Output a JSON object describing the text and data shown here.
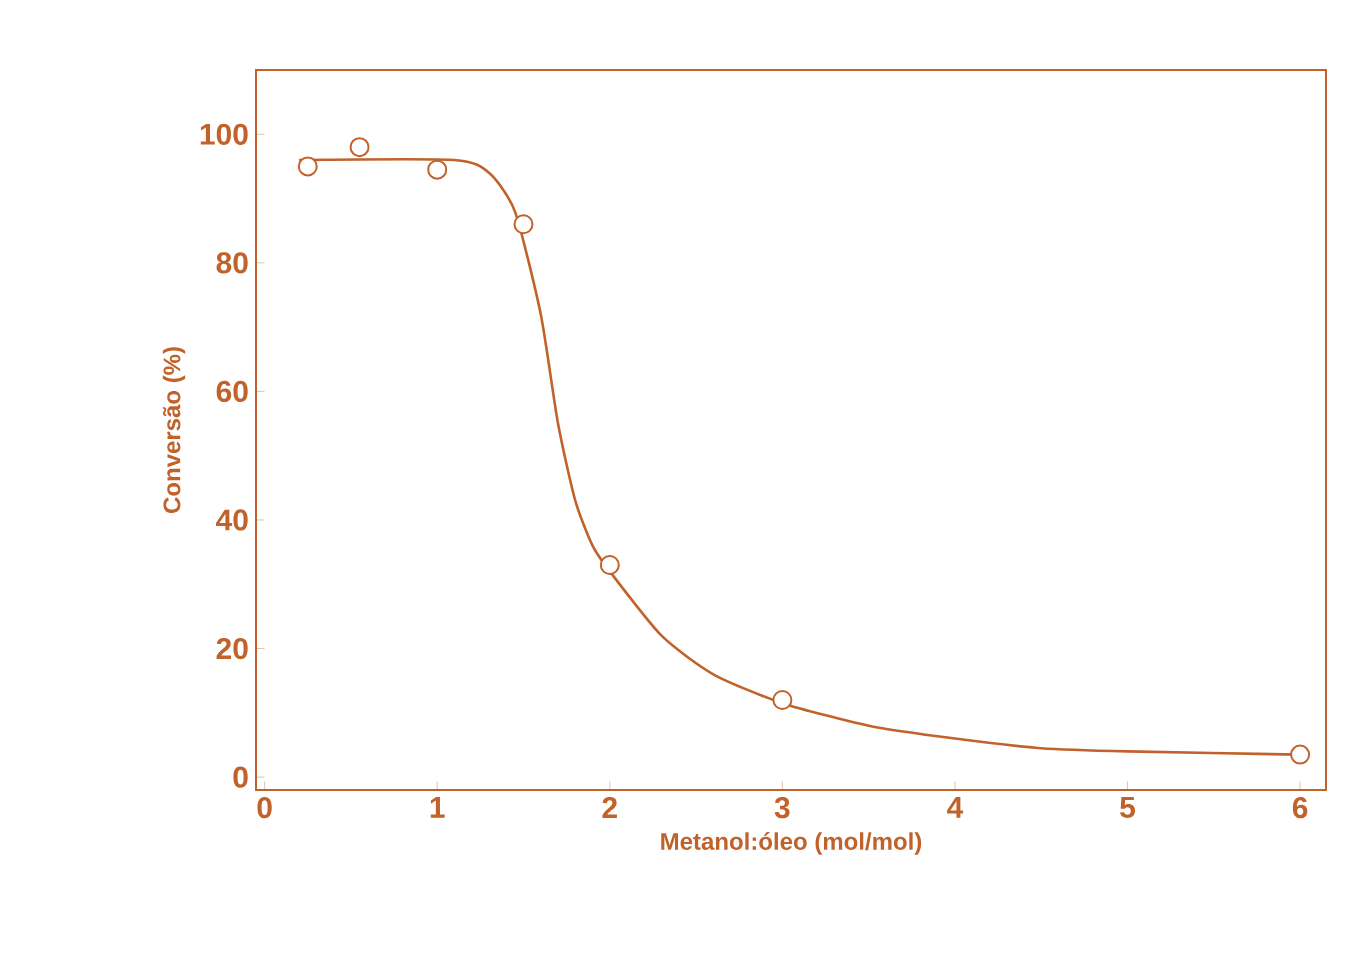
{
  "chart_data": {
    "type": "scatter",
    "xlabel": "Metanol:óleo (mol/mol)",
    "ylabel": "Conversão (%)",
    "xlim": [
      -0.05,
      6.15
    ],
    "ylim": [
      -2,
      110
    ],
    "xticks": [
      0,
      1,
      2,
      3,
      4,
      5,
      6
    ],
    "yticks": [
      0,
      20,
      40,
      60,
      80,
      100
    ],
    "grid": false,
    "series": [
      {
        "color": "#c0622a",
        "marker": "circle",
        "x": [
          0.25,
          0.55,
          1.0,
          1.5,
          2.0,
          3.0,
          6.0
        ],
        "values": [
          95,
          98,
          94.5,
          86,
          33,
          12,
          3.5
        ]
      },
      {
        "type": "line",
        "color": "#c0622a",
        "marker": "none",
        "line_style": "solid",
        "x": [
          0.2,
          1.1,
          1.3,
          1.45,
          1.6,
          1.7,
          1.8,
          1.9,
          2.0,
          2.3,
          2.6,
          3.0,
          3.5,
          4.0,
          4.5,
          5.0,
          6.0
        ],
        "values": [
          96,
          96,
          94,
          88,
          72,
          55,
          43,
          36,
          32,
          22,
          16,
          11.5,
          8,
          6,
          4.5,
          4,
          3.5
        ]
      }
    ]
  }
}
